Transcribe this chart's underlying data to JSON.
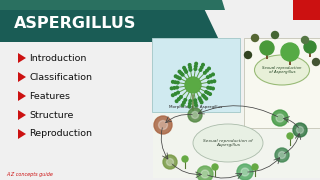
{
  "title": "ASPERGILLUS",
  "title_color": "#ffffff",
  "title_bg_dark": "#1a5c55",
  "title_bg_light": "#2d8a7a",
  "bg_color": "#f0f0f0",
  "bullet_color": "#cc1111",
  "bullet_items": [
    "Introduction",
    "Classification",
    "Features",
    "Structure",
    "Reproduction"
  ],
  "bullet_text_color": "#111111",
  "footer_text": "A Z concepts guide",
  "footer_color": "#cc1111",
  "red_sq_color": "#cc1111",
  "morph_box_bg": "#d0eaf0",
  "morph_box_border": "#aacccc",
  "cycle_top_bg": "#f4f4e8",
  "cycle_bot_bg": "#f0f4f0",
  "vesicle_color": "#5aaa44",
  "stalk_color": "#6a8844",
  "spore_color": "#338833",
  "sterigma_color": "#44aa44",
  "label_color": "#333333",
  "cycle_label": "#333355",
  "teal_strip": "#2a7060"
}
